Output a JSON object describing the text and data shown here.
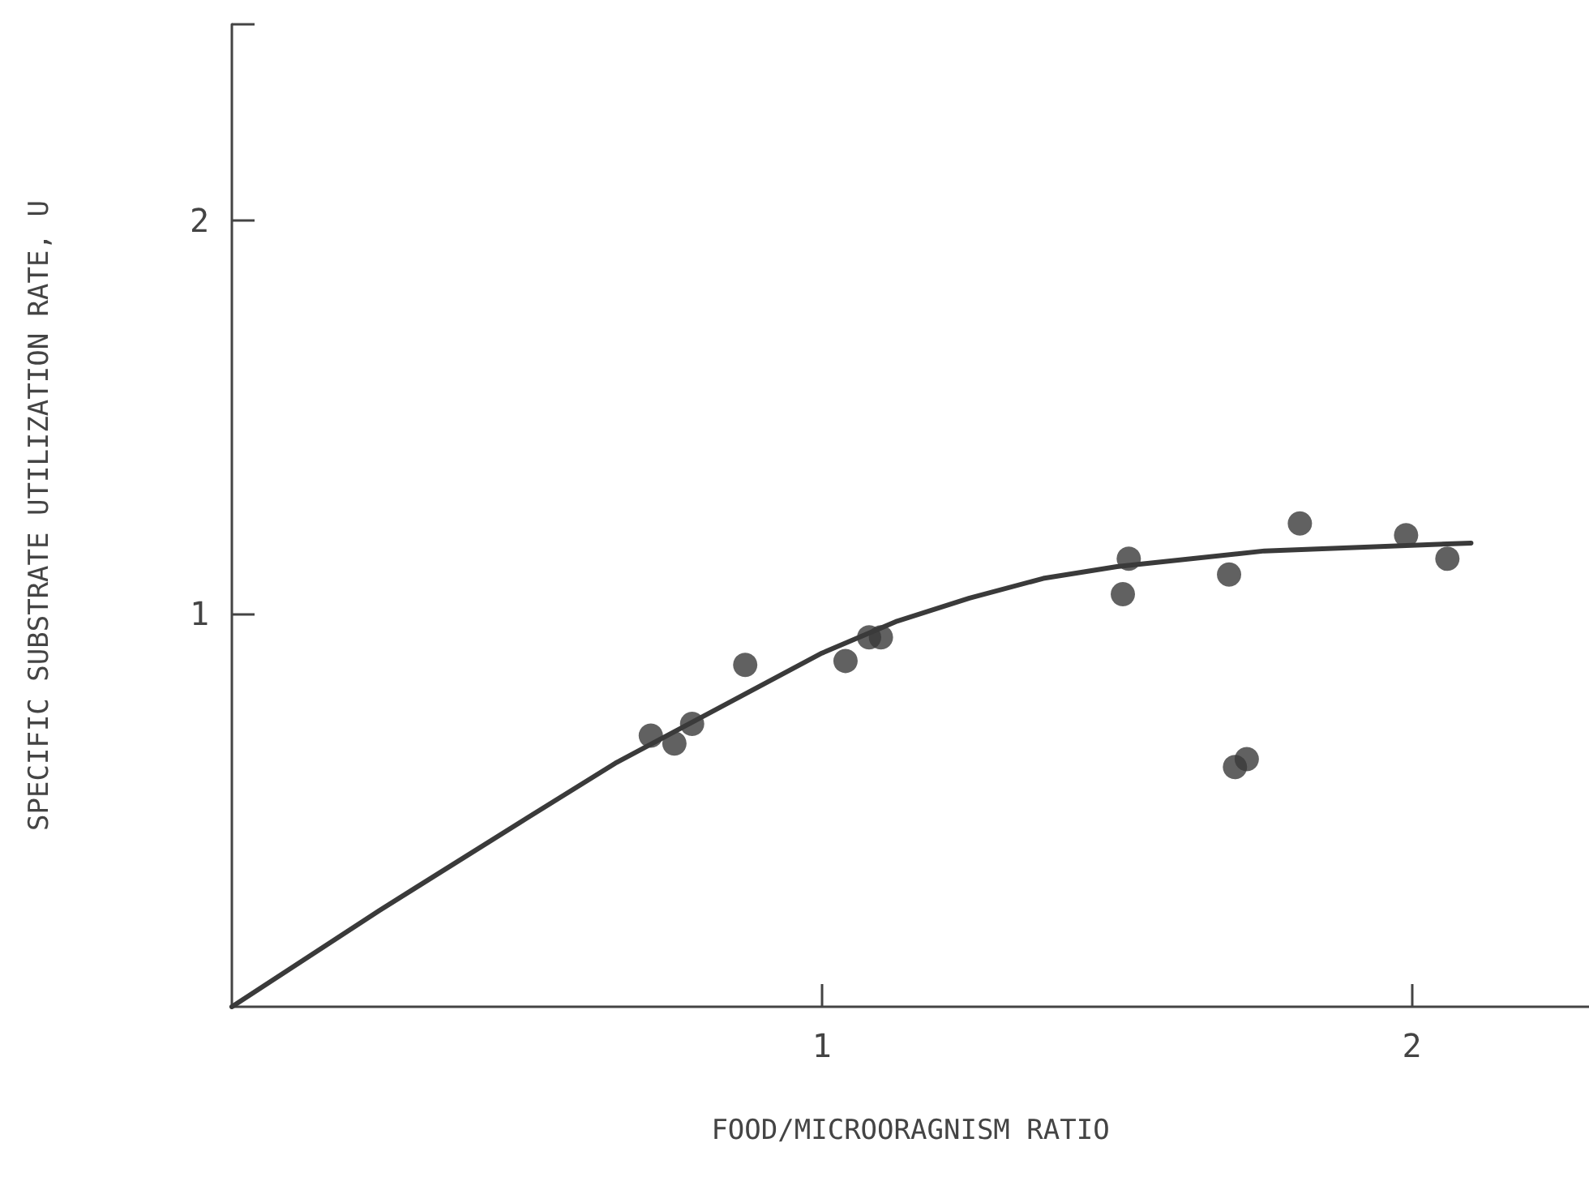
{
  "chart_data": {
    "type": "scatter",
    "xlabel": "FOOD/MICROORAGNISM RATIO",
    "ylabel": "SPECIFIC SUBSTRATE UTILIZATION RATE, U",
    "xlim": [
      0,
      2.3
    ],
    "xticks": [
      1,
      2
    ],
    "ylim": [
      0,
      2.5
    ],
    "yticks": [
      1,
      2,
      {
        "value": 2.5,
        "label": null
      }
    ],
    "grid": false,
    "series": [
      {
        "marker": "circle",
        "color": "#3a3a3a",
        "x": [
          0.71,
          0.75,
          0.78,
          0.87,
          1.04,
          1.08,
          1.1,
          1.51,
          1.52,
          1.69,
          1.7,
          1.72,
          1.81,
          1.99,
          2.06
        ],
        "values": [
          0.69,
          0.67,
          0.72,
          0.87,
          0.88,
          0.94,
          0.94,
          1.05,
          1.14,
          1.1,
          0.61,
          0.63,
          1.23,
          1.2,
          1.14
        ]
      },
      {
        "type": "line",
        "marker": "none",
        "line_style": "solid",
        "color": "#3a3a3a",
        "x": [
          0,
          0.25,
          0.5,
          0.65,
          0.75,
          0.875,
          1,
          1.125,
          1.25,
          1.375,
          1.5,
          1.75,
          2.1
        ],
        "values": [
          0,
          0.245,
          0.48,
          0.62,
          0.7,
          0.8,
          0.9,
          0.98,
          1.04,
          1.09,
          1.12,
          1.16,
          1.18
        ]
      }
    ]
  }
}
